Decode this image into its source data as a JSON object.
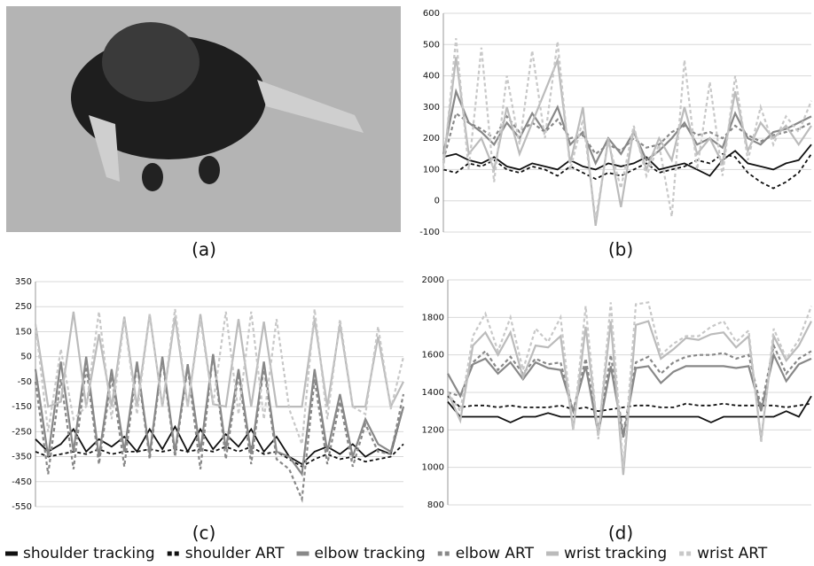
{
  "photo_label": "(a)",
  "legend": [
    {
      "name": "shoulder tracking",
      "color": "#111111",
      "dashed": false
    },
    {
      "name": "shoulder ART",
      "color": "#111111",
      "dashed": true
    },
    {
      "name": "elbow tracking",
      "color": "#888888",
      "dashed": false
    },
    {
      "name": "elbow ART",
      "color": "#888888",
      "dashed": true
    },
    {
      "name": "wrist tracking",
      "color": "#bbbbbb",
      "dashed": false
    },
    {
      "name": "wrist ART",
      "color": "#c8c8c8",
      "dashed": true
    }
  ],
  "chart_data": [
    {
      "type": "line",
      "label": "(b)",
      "grid": true,
      "ylim": [
        -100,
        600
      ],
      "yticks": [
        -100,
        0,
        100,
        200,
        300,
        400,
        500,
        600
      ],
      "categories": [
        null,
        null,
        null,
        null,
        null,
        null,
        null,
        null,
        null,
        null,
        null,
        null,
        null,
        null,
        null,
        null,
        null,
        null,
        null,
        null,
        null,
        null,
        null,
        null,
        null,
        null,
        null,
        null,
        null,
        null
      ],
      "series": [
        {
          "values": [
            140,
            150,
            130,
            120,
            140,
            110,
            100,
            120,
            110,
            100,
            130,
            110,
            100,
            120,
            110,
            120,
            140,
            100,
            110,
            120,
            100,
            80,
            130,
            160,
            120,
            110,
            100,
            120,
            130,
            180
          ]
        },
        {
          "values": [
            100,
            90,
            120,
            110,
            130,
            100,
            90,
            110,
            100,
            80,
            110,
            90,
            70,
            90,
            80,
            100,
            120,
            90,
            100,
            110,
            130,
            120,
            150,
            140,
            90,
            60,
            40,
            60,
            90,
            150
          ]
        },
        {
          "values": [
            150,
            350,
            250,
            220,
            180,
            250,
            200,
            280,
            220,
            300,
            180,
            220,
            120,
            200,
            150,
            220,
            130,
            160,
            200,
            250,
            180,
            200,
            170,
            280,
            200,
            180,
            220,
            230,
            250,
            270
          ]
        },
        {
          "values": [
            130,
            280,
            250,
            230,
            200,
            270,
            220,
            250,
            220,
            260,
            200,
            210,
            150,
            180,
            160,
            200,
            170,
            180,
            220,
            240,
            210,
            220,
            200,
            240,
            210,
            190,
            210,
            220,
            230,
            250
          ]
        },
        {
          "values": [
            120,
            460,
            150,
            200,
            100,
            300,
            150,
            250,
            350,
            450,
            120,
            300,
            -80,
            200,
            -20,
            230,
            100,
            200,
            130,
            300,
            150,
            200,
            120,
            350,
            160,
            250,
            200,
            240,
            180,
            240
          ]
        },
        {
          "values": [
            100,
            520,
            100,
            490,
            60,
            400,
            180,
            480,
            200,
            510,
            100,
            260,
            -60,
            190,
            40,
            240,
            80,
            180,
            -50,
            450,
            100,
            380,
            80,
            400,
            130,
            300,
            180,
            270,
            220,
            320
          ]
        }
      ]
    },
    {
      "type": "line",
      "label": "(c)",
      "grid": true,
      "ylim": [
        -550,
        350
      ],
      "yticks": [
        -550,
        -450,
        -350,
        -250,
        -150,
        {
          "value": -50,
          "label": "-50"
        },
        50,
        150,
        250,
        350
      ],
      "categories": [
        null,
        null,
        null,
        null,
        null,
        null,
        null,
        null,
        null,
        null,
        null,
        null,
        null,
        null,
        null,
        null,
        null,
        null,
        null,
        null,
        null,
        null,
        null,
        null,
        null,
        null,
        null,
        null,
        null,
        null
      ],
      "series": [
        {
          "values": [
            -280,
            -330,
            -300,
            -240,
            -330,
            -280,
            -310,
            -270,
            -330,
            -240,
            -320,
            -230,
            -330,
            -240,
            -320,
            -260,
            -310,
            -240,
            -330,
            -270,
            -350,
            -380,
            -330,
            -310,
            -340,
            -300,
            -350,
            -320,
            -340,
            -150
          ]
        },
        {
          "values": [
            -330,
            -350,
            -340,
            -330,
            -340,
            -320,
            -340,
            -330,
            -330,
            -320,
            -330,
            -320,
            -330,
            -320,
            -330,
            -310,
            -330,
            -310,
            -340,
            -330,
            -360,
            -390,
            -360,
            -340,
            -360,
            -350,
            -370,
            -360,
            -350,
            -300
          ]
        },
        {
          "values": [
            0,
            -350,
            30,
            -330,
            50,
            -350,
            0,
            -330,
            30,
            -340,
            50,
            -330,
            20,
            -330,
            60,
            -320,
            0,
            -340,
            30,
            -330,
            -350,
            -420,
            0,
            -330,
            -100,
            -350,
            -200,
            -300,
            -330,
            -150
          ]
        },
        {
          "values": [
            -50,
            -420,
            -40,
            -400,
            10,
            -380,
            -30,
            -390,
            20,
            -360,
            40,
            -350,
            10,
            -400,
            60,
            -360,
            -20,
            -380,
            10,
            -360,
            -400,
            -520,
            -40,
            -380,
            -130,
            -390,
            -220,
            -330,
            -340,
            -100
          ]
        },
        {
          "values": [
            180,
            -150,
            -130,
            230,
            -150,
            140,
            -150,
            210,
            -150,
            220,
            -150,
            210,
            -150,
            220,
            -140,
            -150,
            200,
            -150,
            190,
            -150,
            -150,
            -150,
            200,
            -150,
            180,
            -150,
            -150,
            130,
            -150,
            -50
          ]
        },
        {
          "values": [
            180,
            -250,
            80,
            -200,
            -150,
            230,
            -200,
            200,
            -180,
            220,
            -150,
            240,
            -150,
            200,
            -140,
            230,
            -180,
            230,
            -200,
            200,
            -160,
            -300,
            240,
            -200,
            200,
            -150,
            -180,
            170,
            -160,
            50
          ]
        }
      ]
    },
    {
      "type": "line",
      "label": "(d)",
      "grid": true,
      "ylim": [
        800,
        2000
      ],
      "yticks": [
        800,
        1000,
        1200,
        1400,
        1600,
        1800,
        2000
      ],
      "categories": [
        null,
        null,
        null,
        null,
        null,
        null,
        null,
        null,
        null,
        null,
        null,
        null,
        null,
        null,
        null,
        null,
        null,
        null,
        null,
        null,
        null,
        null,
        null,
        null,
        null,
        null,
        null,
        null,
        null,
        null
      ],
      "series": [
        {
          "values": [
            1350,
            1270,
            1270,
            1270,
            1270,
            1240,
            1270,
            1270,
            1290,
            1270,
            1270,
            1270,
            1270,
            1270,
            1270,
            1270,
            1270,
            1270,
            1270,
            1270,
            1270,
            1240,
            1270,
            1270,
            1270,
            1270,
            1270,
            1300,
            1270,
            1380
          ]
        },
        {
          "values": [
            1380,
            1320,
            1330,
            1330,
            1320,
            1330,
            1320,
            1320,
            1320,
            1330,
            1310,
            1320,
            1300,
            1310,
            1320,
            1330,
            1330,
            1320,
            1320,
            1340,
            1330,
            1330,
            1340,
            1330,
            1330,
            1330,
            1330,
            1320,
            1330,
            1340
          ]
        },
        {
          "values": [
            1500,
            1380,
            1550,
            1580,
            1500,
            1560,
            1470,
            1560,
            1530,
            1520,
            1300,
            1540,
            1180,
            1540,
            1160,
            1530,
            1540,
            1450,
            1510,
            1540,
            1540,
            1540,
            1540,
            1530,
            1540,
            1300,
            1600,
            1460,
            1550,
            1580
          ]
        },
        {
          "values": [
            1400,
            1380,
            1560,
            1620,
            1520,
            1590,
            1500,
            1580,
            1550,
            1560,
            1300,
            1580,
            1200,
            1600,
            1180,
            1560,
            1590,
            1500,
            1560,
            1590,
            1600,
            1600,
            1610,
            1580,
            1600,
            1320,
            1650,
            1500,
            1580,
            1620
          ]
        },
        {
          "values": [
            1400,
            1250,
            1650,
            1720,
            1600,
            1720,
            1480,
            1650,
            1640,
            1700,
            1200,
            1750,
            1170,
            1780,
            960,
            1760,
            1780,
            1580,
            1630,
            1690,
            1680,
            1710,
            1720,
            1640,
            1700,
            1150,
            1700,
            1570,
            1650,
            1780
          ]
        },
        {
          "values": [
            1400,
            1300,
            1700,
            1820,
            1620,
            1800,
            1520,
            1740,
            1670,
            1800,
            1200,
            1860,
            1150,
            1880,
            1000,
            1870,
            1880,
            1600,
            1660,
            1700,
            1700,
            1750,
            1780,
            1670,
            1730,
            1130,
            1740,
            1580,
            1680,
            1860
          ]
        }
      ]
    }
  ]
}
